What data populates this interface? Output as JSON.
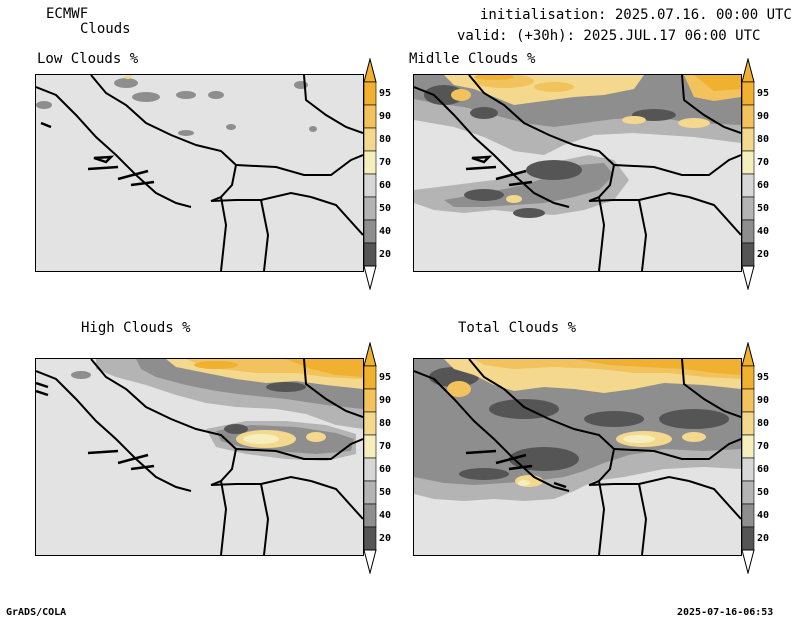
{
  "header": {
    "model": "ECMWF",
    "product": "Clouds",
    "init": "initialisation: 2025.07.16. 00:00 UTC",
    "valid": "valid: (+30h): 2025.JUL.17 06:00 UTC"
  },
  "panels": {
    "low": "Low Clouds %",
    "mid": "Midlle Clouds %",
    "high": "High Clouds %",
    "total": "Total Clouds %"
  },
  "colorbar": {
    "levels": [
      "95",
      "90",
      "80",
      "70",
      "60",
      "50",
      "40",
      "20"
    ],
    "colors": [
      "#f0b030",
      "#f2c35c",
      "#f4d88e",
      "#f5efbe",
      "#d7d7d7",
      "#b4b4b4",
      "#8e8e8e",
      "#555555"
    ]
  },
  "footer": {
    "left": "GrADS/COLA",
    "right": "2025-07-16-06:53"
  }
}
